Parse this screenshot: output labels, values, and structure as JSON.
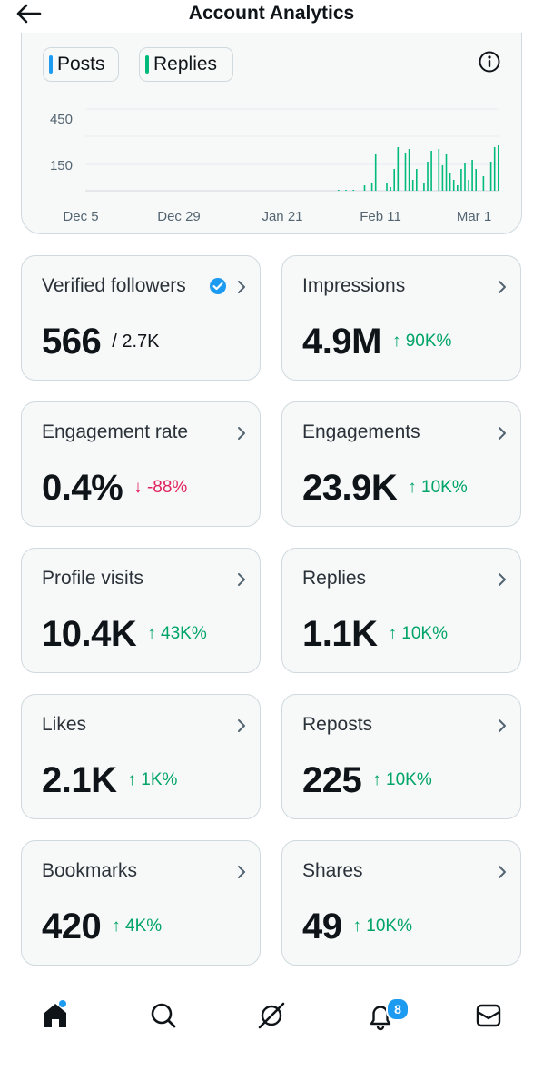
{
  "header": {
    "title": "Account Analytics"
  },
  "legend": {
    "posts": "Posts",
    "replies": "Replies"
  },
  "colors": {
    "posts": "#1d9bf0",
    "replies": "#00ba7c",
    "up": "#00a468",
    "down": "#e0245e"
  },
  "chart_data": {
    "type": "bar",
    "y_ticks": [
      "450",
      "150"
    ],
    "x_ticks": [
      "Dec 5",
      "Dec 29",
      "Jan 21",
      "Feb 11",
      "Mar 1"
    ],
    "series": [
      {
        "name": "Replies",
        "values": [
          2,
          0,
          4,
          0,
          2,
          0,
          0,
          30,
          0,
          40,
          200,
          0,
          0,
          40,
          20,
          120,
          240,
          0,
          210,
          230,
          60,
          120,
          0,
          40,
          160,
          220,
          0,
          230,
          140,
          200,
          100,
          60,
          30,
          120,
          150,
          60,
          170,
          120,
          0,
          80,
          0,
          160,
          240,
          250
        ]
      }
    ]
  },
  "cards": [
    {
      "label": "Verified followers",
      "value": "566",
      "sub": "/ 2.7K",
      "change": "",
      "dir": ""
    },
    {
      "label": "Impressions",
      "value": "4.9M",
      "sub": "",
      "change": "↑ 90K%",
      "dir": "up"
    },
    {
      "label": "Engagement rate",
      "value": "0.4%",
      "sub": "",
      "change": "↓ -88%",
      "dir": "down"
    },
    {
      "label": "Engagements",
      "value": "23.9K",
      "sub": "",
      "change": "↑ 10K%",
      "dir": "up"
    },
    {
      "label": "Profile visits",
      "value": "10.4K",
      "sub": "",
      "change": "↑ 43K%",
      "dir": "up"
    },
    {
      "label": "Replies",
      "value": "1.1K",
      "sub": "",
      "change": "↑ 10K%",
      "dir": "up"
    },
    {
      "label": "Likes",
      "value": "2.1K",
      "sub": "",
      "change": "↑ 1K%",
      "dir": "up"
    },
    {
      "label": "Reposts",
      "value": "225",
      "sub": "",
      "change": "↑ 10K%",
      "dir": "up"
    },
    {
      "label": "Bookmarks",
      "value": "420",
      "sub": "",
      "change": "↑ 4K%",
      "dir": "up"
    },
    {
      "label": "Shares",
      "value": "49",
      "sub": "",
      "change": "↑ 10K%",
      "dir": "up"
    }
  ],
  "nav": {
    "items": [
      "home-icon",
      "search-icon",
      "grok-icon",
      "notifications-icon",
      "messages-icon"
    ],
    "notification_count": "8"
  }
}
